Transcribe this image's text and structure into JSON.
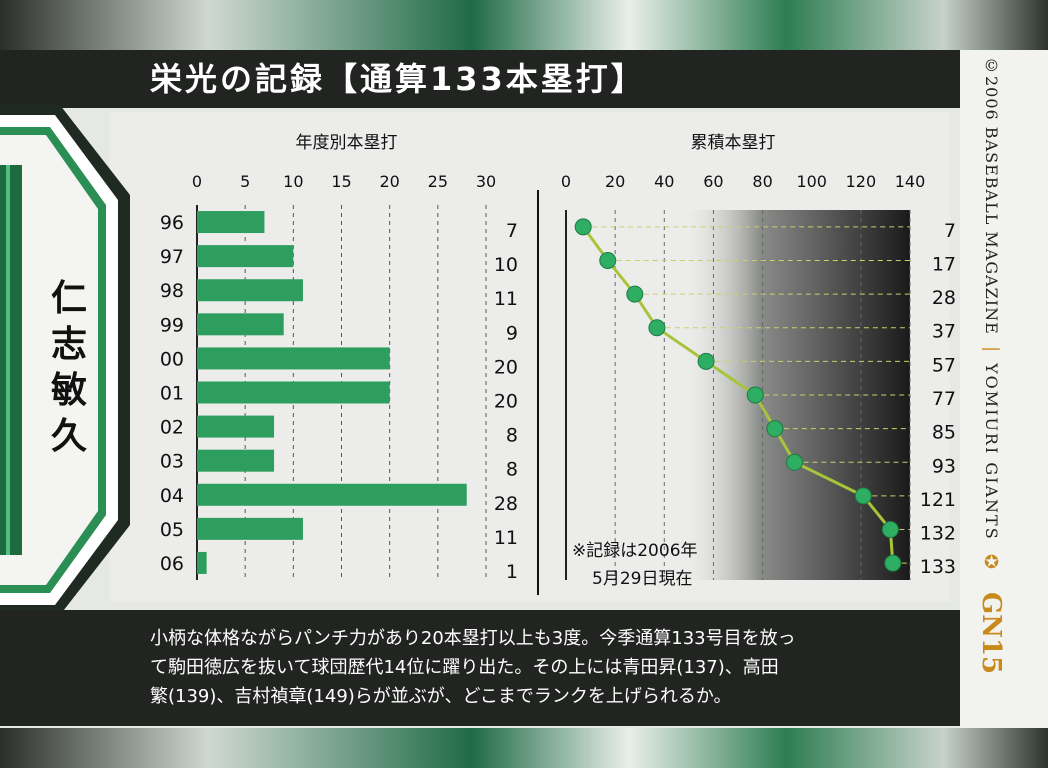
{
  "title": "栄光の記録【通算133本塁打】",
  "player_name": [
    "仁",
    "志",
    "敏",
    "久"
  ],
  "description_lines": [
    "小柄な体格ながらパンチ力があり20本塁打以上も3度。今季通算133号目を放っ",
    "て駒田徳広を抜いて球団歴代14位に躍り出た。その上には青田昇(137)、高田",
    "繁(139)、吉村禎章(149)らが並ぶが、どこまでランクを上げられるか。"
  ],
  "side": {
    "copyright": "©2006 BASEBALL MAGAZINE",
    "team": "YOMIURI GIANTS",
    "card_number": "GN15"
  },
  "note_lines": [
    "※記録は2006年",
    "5月29日現在"
  ],
  "colors": {
    "bar": "#2e9e5e",
    "point": "#2eae62",
    "line": "#a8c43a",
    "band": "#222422"
  },
  "chart_data": [
    {
      "type": "bar",
      "orientation": "horizontal",
      "title": "年度別本塁打",
      "categories": [
        "96",
        "97",
        "98",
        "99",
        "00",
        "01",
        "02",
        "03",
        "04",
        "05",
        "06"
      ],
      "values": [
        7,
        10,
        11,
        9,
        20,
        20,
        8,
        8,
        28,
        11,
        1
      ],
      "xlim": [
        0,
        30
      ],
      "xticks": [
        0,
        5,
        10,
        15,
        20,
        25,
        30
      ]
    },
    {
      "type": "line",
      "title": "累積本塁打",
      "categories": [
        "96",
        "97",
        "98",
        "99",
        "00",
        "01",
        "02",
        "03",
        "04",
        "05",
        "06"
      ],
      "values": [
        7,
        17,
        28,
        37,
        57,
        77,
        85,
        93,
        121,
        132,
        133
      ],
      "xlim": [
        0,
        140
      ],
      "xticks": [
        0,
        20,
        40,
        60,
        80,
        100,
        120,
        140
      ]
    }
  ]
}
